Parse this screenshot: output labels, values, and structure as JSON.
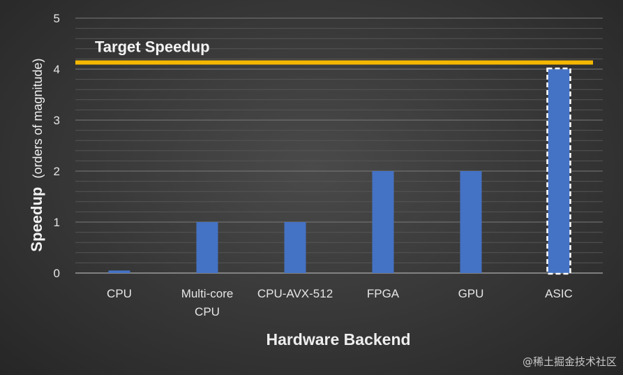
{
  "chart_data": {
    "type": "bar",
    "categories": [
      "CPU",
      "Multi-core\nCPU",
      "CPU-AVX-512",
      "FPGA",
      "GPU",
      "ASIC"
    ],
    "values": [
      0.05,
      1,
      1,
      2,
      2,
      4
    ],
    "xlabel": "Hardware Backend",
    "ylabel_main": "Speedup",
    "ylabel_sub": "(orders of magnitude)",
    "ylim": [
      0,
      5
    ],
    "yticks": [
      0,
      1,
      2,
      3,
      4,
      5
    ],
    "grid": true,
    "target_line": {
      "label": "Target Speedup",
      "value": 4.13,
      "color": "#f5b800"
    },
    "highlighted_bar": {
      "category": "ASIC",
      "style": "dashed white outline"
    },
    "bar_color": "#4472c4"
  },
  "watermark": "@稀土掘金技术社区"
}
